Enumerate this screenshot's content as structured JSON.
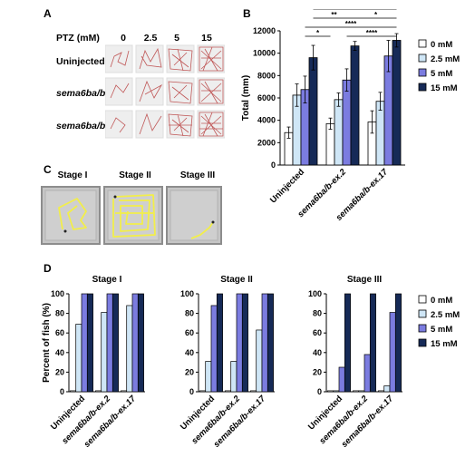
{
  "panels": {
    "a": "A",
    "b": "B",
    "c": "C",
    "d": "D"
  },
  "panel_a": {
    "ptz_label": "PTZ (mM)",
    "concentrations": [
      "0",
      "2.5",
      "5",
      "15"
    ],
    "rows": [
      "Uninjected",
      "sema6ba/b-ex.2",
      "sema6ba/b-ex.17"
    ]
  },
  "panel_c": {
    "stages": [
      "Stage I",
      "Stage II",
      "Stage III"
    ]
  },
  "colors": {
    "0 mM": "#ffffff",
    "2.5 mM": "#cfe6f6",
    "5 mM": "#7b7ce0",
    "15 mM": "#162a57",
    "track_red": "#c05858",
    "track_yellow": "#f2ee4a"
  },
  "chart_data": [
    {
      "type": "bar",
      "panel": "B",
      "title": "",
      "xlabel": "",
      "ylabel": "Total (mm)",
      "ylim": [
        0,
        12000
      ],
      "yticks": [
        "0",
        "2000",
        "4000",
        "6000",
        "8000",
        "10000",
        "12000"
      ],
      "categories": [
        "Uninjected",
        "sema6ba/b-ex.2",
        "sema6ba/b-ex.17"
      ],
      "legend": [
        "0 mM",
        "2.5 mM",
        "5 mM",
        "15 mM"
      ],
      "legend_position": "right",
      "series": [
        {
          "name": "0 mM",
          "values": [
            2900,
            3700,
            3850
          ],
          "errors": [
            500,
            500,
            1000
          ]
        },
        {
          "name": "2.5 mM",
          "values": [
            6250,
            5850,
            5700
          ],
          "errors": [
            1000,
            600,
            800
          ]
        },
        {
          "name": "5 mM",
          "values": [
            6750,
            7600,
            9750
          ],
          "errors": [
            1200,
            1000,
            1400
          ]
        },
        {
          "name": "15 mM",
          "values": [
            9600,
            10650,
            11150
          ],
          "errors": [
            1100,
            400,
            600
          ]
        }
      ],
      "significance": [
        {
          "label": "****"
        },
        {
          "label": "**"
        },
        {
          "label": "*"
        },
        {
          "label": "****"
        },
        {
          "label": "*"
        },
        {
          "label": "****"
        }
      ]
    },
    {
      "type": "bar",
      "panel": "D",
      "ylabel": "Percent of fish (%)",
      "ylim": [
        0,
        100
      ],
      "yticks": [
        "0",
        "20",
        "40",
        "60",
        "80",
        "100"
      ],
      "categories": [
        "Uninjected",
        "sema6ba/b-ex.2",
        "sema6ba/b-ex.17"
      ],
      "legend": [
        "0 mM",
        "2.5 mM",
        "5 mM",
        "15 mM"
      ],
      "subplots": [
        {
          "title": "Stage I",
          "series": [
            {
              "name": "0 mM",
              "values": [
                1,
                1,
                1
              ]
            },
            {
              "name": "2.5 mM",
              "values": [
                69,
                81,
                88
              ]
            },
            {
              "name": "5 mM",
              "values": [
                100,
                100,
                100
              ]
            },
            {
              "name": "15 mM",
              "values": [
                100,
                100,
                100
              ]
            }
          ]
        },
        {
          "title": "Stage II",
          "series": [
            {
              "name": "0 mM",
              "values": [
                1,
                1,
                1
              ]
            },
            {
              "name": "2.5 mM",
              "values": [
                31,
                31,
                63
              ]
            },
            {
              "name": "5 mM",
              "values": [
                88,
                100,
                100
              ]
            },
            {
              "name": "15 mM",
              "values": [
                100,
                100,
                100
              ]
            }
          ]
        },
        {
          "title": "Stage III",
          "series": [
            {
              "name": "0 mM",
              "values": [
                1,
                1,
                1
              ]
            },
            {
              "name": "2.5 mM",
              "values": [
                1,
                1,
                6
              ]
            },
            {
              "name": "5 mM",
              "values": [
                25,
                38,
                81
              ]
            },
            {
              "name": "15 mM",
              "values": [
                100,
                100,
                100
              ]
            }
          ]
        }
      ]
    }
  ]
}
